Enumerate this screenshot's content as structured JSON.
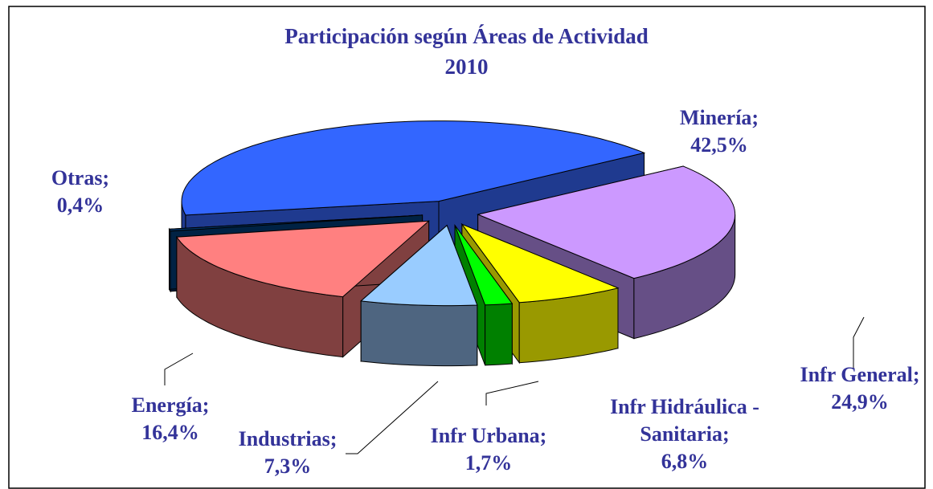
{
  "chart_data": {
    "type": "pie",
    "title": "Participación según Áreas de Actividad",
    "subtitle": "2010",
    "categories": [
      "Minería;",
      "Infr General;",
      "Infr Hidráulica - Sanitaria;",
      "Infr Urbana;",
      "Industrias;",
      "Energía;",
      "Otras;"
    ],
    "values": [
      42.5,
      24.9,
      6.8,
      1.7,
      7.3,
      16.4,
      0.4
    ],
    "value_labels": [
      "42,5%",
      "24,9%",
      "6,8%",
      "1,7%",
      "7,3%",
      "16,4%",
      "0,4%"
    ],
    "colors": [
      "#3366ff",
      "#cc99ff",
      "#ffff00",
      "#00ff00",
      "#99ccff",
      "#ff8080",
      "#003366"
    ],
    "side_colors": [
      "#1f3a8f",
      "#664f86",
      "#999900",
      "#008000",
      "#4e6580",
      "#804040",
      "#002244"
    ]
  }
}
